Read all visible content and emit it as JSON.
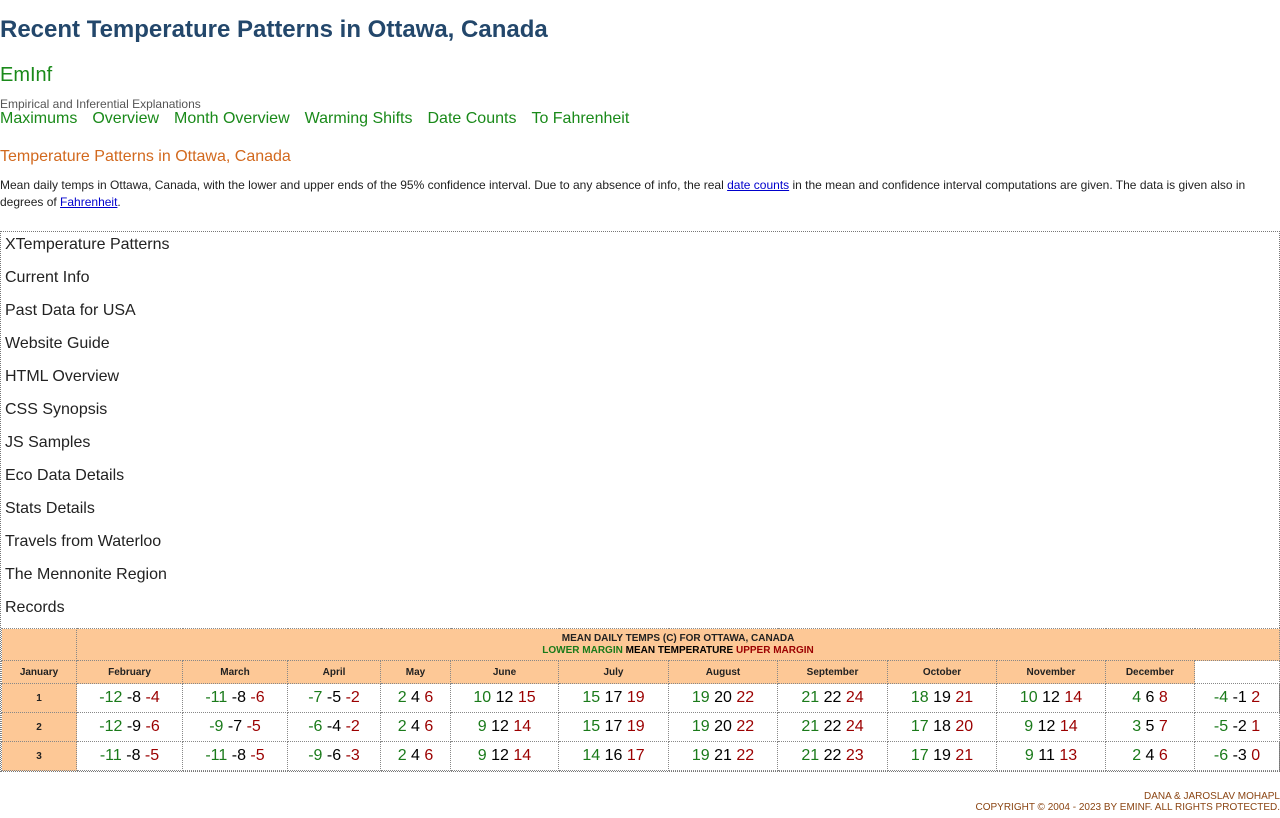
{
  "header": {
    "title": "Recent Temperature Patterns in Ottawa, Canada",
    "brand": "EmInf",
    "tagline": "Empirical and Inferential Explanations"
  },
  "nav": [
    "Maximums",
    "Overview",
    "Month Overview",
    "Warming Shifts",
    "Date Counts",
    "To Fahrenheit"
  ],
  "section": {
    "heading": "Temperature Patterns in Ottawa, Canada",
    "intro": {
      "text1": "Mean daily temps in Ottawa, Canada, with the lower and upper ends of the 95% confidence interval. Due to any absence of info, the real ",
      "link1": "date counts",
      "text2": " in the mean and confidence interval computations are given. The data is given also in degrees of ",
      "link2": "Fahrenheit",
      "text3": "."
    }
  },
  "menu": [
    "XTemperature Patterns",
    "Current Info",
    "Past Data for USA",
    "Website Guide",
    "HTML Overview",
    "CSS Synopsis",
    "JS Samples",
    "Eco Data Details",
    "Stats Details",
    "Travels from Waterloo",
    "The Mennonite Region",
    "Records"
  ],
  "table": {
    "caption": "MEAN DAILY TEMPS (C) FOR OTTAWA, CANADA",
    "legend": {
      "lower": "LOWER MARGIN",
      "mean": "MEAN TEMPERATURE",
      "upper": "UPPER MARGIN"
    },
    "columns": [
      "January",
      "February",
      "March",
      "April",
      "May",
      "June",
      "July",
      "August",
      "September",
      "October",
      "November",
      "December"
    ],
    "rows": [
      {
        "day": 1,
        "cells": [
          [
            -12,
            -8,
            -4
          ],
          [
            -11,
            -8,
            -6
          ],
          [
            -7,
            -5,
            -2
          ],
          [
            2,
            4,
            6
          ],
          [
            10,
            12,
            15
          ],
          [
            15,
            17,
            19
          ],
          [
            19,
            20,
            22
          ],
          [
            21,
            22,
            24
          ],
          [
            18,
            19,
            21
          ],
          [
            10,
            12,
            14
          ],
          [
            4,
            6,
            8
          ],
          [
            -4,
            -1,
            2
          ]
        ]
      },
      {
        "day": 2,
        "cells": [
          [
            -12,
            -9,
            -6
          ],
          [
            -9,
            -7,
            -5
          ],
          [
            -6,
            -4,
            -2
          ],
          [
            2,
            4,
            6
          ],
          [
            9,
            12,
            14
          ],
          [
            15,
            17,
            19
          ],
          [
            19,
            20,
            22
          ],
          [
            21,
            22,
            24
          ],
          [
            17,
            18,
            20
          ],
          [
            9,
            12,
            14
          ],
          [
            3,
            5,
            7
          ],
          [
            -5,
            -2,
            1
          ]
        ]
      },
      {
        "day": 3,
        "cells": [
          [
            -11,
            -8,
            -5
          ],
          [
            -11,
            -8,
            -5
          ],
          [
            -9,
            -6,
            -3
          ],
          [
            2,
            4,
            6
          ],
          [
            9,
            12,
            14
          ],
          [
            14,
            16,
            17
          ],
          [
            19,
            21,
            22
          ],
          [
            21,
            22,
            23
          ],
          [
            17,
            19,
            21
          ],
          [
            9,
            11,
            13
          ],
          [
            2,
            4,
            6
          ],
          [
            -6,
            -3,
            0
          ]
        ]
      }
    ]
  },
  "footer": {
    "authors": "DANA & JAROSLAV MOHAPL",
    "copyright": "COPYRIGHT © 2004 - 2023 BY EMINF. ALL RIGHTS PROTECTED."
  }
}
